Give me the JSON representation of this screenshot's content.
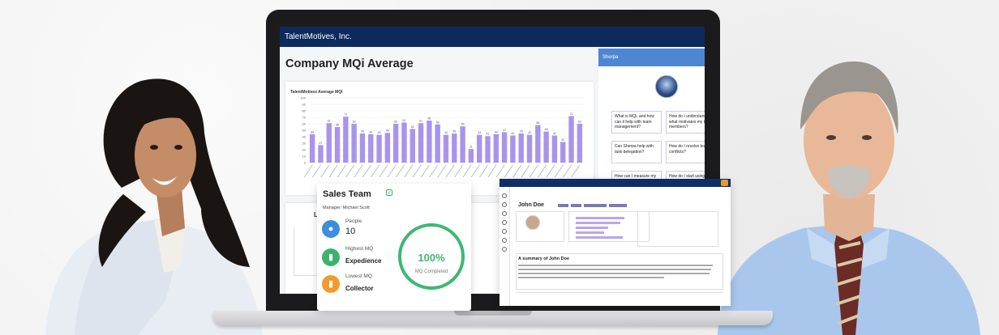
{
  "colors": {
    "nav": "#0c2a5b",
    "bar": "#a994ec",
    "accent": "#3cb872",
    "sherpa_header": "#4f86d2"
  },
  "dashboard": {
    "app_name": "TalentMotives, Inc.",
    "page_title": "Company MQi Average",
    "lower_label": "L"
  },
  "chart_data": {
    "type": "bar",
    "title": "TalentMotives Average MQI",
    "ylim": [
      0,
      100
    ],
    "yticks": [
      "100",
      "90",
      "80",
      "70",
      "60",
      "50",
      "40",
      "30",
      "20",
      "10",
      "0"
    ],
    "values": [
      44,
      27,
      61,
      55,
      71,
      60,
      45,
      44,
      43,
      46,
      60,
      62,
      52,
      61,
      65,
      59,
      43,
      45,
      56,
      21,
      43,
      41,
      44,
      47,
      42,
      45,
      43,
      58,
      48,
      42,
      32,
      72,
      60
    ]
  },
  "sherpa": {
    "title": "Sherpa",
    "questions": [
      "What is MQi, and how can it help with team management?",
      "How do I understand what motivates my team members?",
      "Can Sherpa help with task delegation?",
      "How do I resolve team conflicts?",
      "How can I measure my team's success using MQi?",
      "How do I start using MQi and Sherpa?"
    ]
  },
  "sales_team": {
    "title": "Sales Team",
    "manager": "Manager: Michael Scott",
    "people_label": "People",
    "people_value": "10",
    "highest_label": "Highest MQ",
    "highest_value": "Expedience",
    "lowest_label": "Lowest MQ",
    "lowest_value": "Collector",
    "completion": 1.0,
    "completion_text": "100%",
    "completion_caption": "MQ Completed"
  },
  "profile": {
    "name": "John Doe",
    "summary_title": "A summary of  John Doe"
  }
}
